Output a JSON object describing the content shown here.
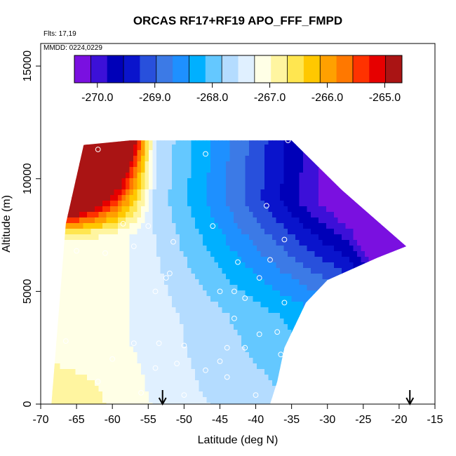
{
  "chart_data": {
    "type": "heatmap",
    "title": "ORCAS RF17+RF19 APO_FFF_FMPD",
    "flights_label": "Flts: 17,19",
    "date_label": "MMDD: 0224,0229",
    "xlabel": "Latitude (deg N)",
    "ylabel": "Altitude (m)",
    "xlim": [
      -70,
      -15
    ],
    "ylim": [
      0,
      16000
    ],
    "x_ticks": [
      -70,
      -65,
      -60,
      -55,
      -50,
      -45,
      -40,
      -35,
      -30,
      -25,
      -20,
      -15
    ],
    "x_tick_labels": [
      "-70",
      "-65",
      "-60",
      "-55",
      "-50",
      "-45",
      "-40",
      "-35",
      "-30",
      "-25",
      "-20",
      "-15"
    ],
    "y_ticks": [
      0,
      5000,
      10000,
      15000
    ],
    "y_tick_labels": [
      "0",
      "5000",
      "10000",
      "15000"
    ],
    "colorbar": {
      "min": -270.4,
      "max": -264.7,
      "ticks": [
        -270,
        -269,
        -268,
        -267,
        -266,
        -265
      ],
      "tick_labels": [
        "-270.0",
        "-269.0",
        "-268.0",
        "-267.0",
        "-266.0",
        "-265.0"
      ],
      "colors": [
        "#7a10e0",
        "#3c10d8",
        "#0000b8",
        "#0a14cc",
        "#2850dc",
        "#3c7ae6",
        "#1e90ff",
        "#00b0ff",
        "#64c8ff",
        "#b4dcff",
        "#e0f0ff",
        "#ffffe6",
        "#fff5a0",
        "#ffe650",
        "#ffc800",
        "#ffa000",
        "#ff7800",
        "#ff3200",
        "#e60000",
        "#aa1414"
      ]
    },
    "domain_outline": [
      [
        -68.5,
        0
      ],
      [
        -66.5,
        8000
      ],
      [
        -64,
        11500
      ],
      [
        -57.5,
        11700
      ],
      [
        -35,
        11700
      ],
      [
        -28,
        9500
      ],
      [
        -19,
        7000
      ],
      [
        -23,
        6500
      ],
      [
        -30,
        5500
      ],
      [
        -33,
        4500
      ],
      [
        -36,
        2500
      ],
      [
        -37,
        1000
      ],
      [
        -38,
        0
      ]
    ],
    "observations": [
      [
        -62,
        11300
      ],
      [
        -47,
        11100
      ],
      [
        -35.5,
        11700
      ],
      [
        -38.5,
        8800
      ],
      [
        -58.5,
        8000
      ],
      [
        -55,
        7900
      ],
      [
        -46,
        7900
      ],
      [
        -36,
        7300
      ],
      [
        -51.5,
        7200
      ],
      [
        -57,
        7000
      ],
      [
        -65,
        6800
      ],
      [
        -61,
        6700
      ],
      [
        -38,
        6400
      ],
      [
        -42.5,
        6300
      ],
      [
        -52,
        5800
      ],
      [
        -52.5,
        5600
      ],
      [
        -39.5,
        5600
      ],
      [
        -54,
        5000
      ],
      [
        -45,
        5000
      ],
      [
        -43,
        5000
      ],
      [
        -41.5,
        4700
      ],
      [
        -36,
        4500
      ],
      [
        -43,
        3800
      ],
      [
        -37,
        3200
      ],
      [
        -39.5,
        3100
      ],
      [
        -66.5,
        2800
      ],
      [
        -57,
        2700
      ],
      [
        -53.5,
        2700
      ],
      [
        -50,
        2600
      ],
      [
        -44,
        2500
      ],
      [
        -41.5,
        2500
      ],
      [
        -36.5,
        2200
      ],
      [
        -45,
        1900
      ],
      [
        -60,
        2000
      ],
      [
        -51,
        1800
      ],
      [
        -47,
        1500
      ],
      [
        -44,
        1200
      ],
      [
        -54,
        1600
      ],
      [
        -62,
        1000
      ],
      [
        -56,
        500
      ],
      [
        -50,
        400
      ],
      [
        -40,
        400
      ]
    ],
    "flight_track_arrows": [
      -53,
      -18.5
    ],
    "field_description": "Near-surface latitudes -70 to -55 are yellowish (~-267); upper-left corner near -62/11000 m is red (~-265); mid-latitudes and high altitudes are deep blue (~-269); the north-east tip near -20/7000 m is purple (~-270)."
  }
}
